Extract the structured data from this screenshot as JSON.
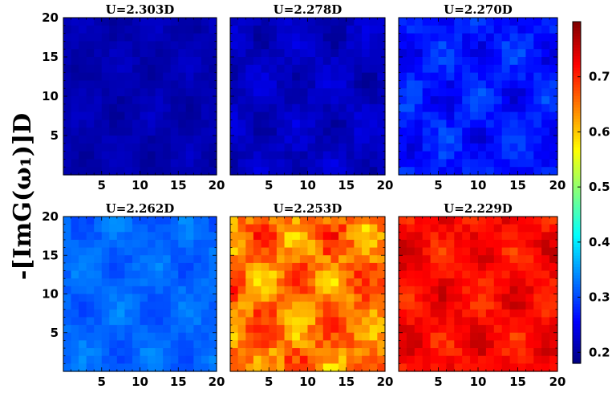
{
  "chart_data": {
    "type": "heatmap",
    "ylabel": "-[ImG(ω₁)]D",
    "grid_range": [
      0,
      20
    ],
    "x_ticks": [
      5,
      10,
      15,
      20
    ],
    "y_ticks": [
      5,
      10,
      15,
      20
    ],
    "colorbar": {
      "range": [
        0.18,
        0.8
      ],
      "ticks": [
        0.2,
        0.3,
        0.4,
        0.5,
        0.6,
        0.7
      ],
      "colormap": "jet"
    },
    "panels": [
      {
        "title": "U=2.303D",
        "mean_value": 0.21,
        "spread": 0.02
      },
      {
        "title": "U=2.278D",
        "mean_value": 0.22,
        "spread": 0.03
      },
      {
        "title": "U=2.270D",
        "mean_value": 0.27,
        "spread": 0.05
      },
      {
        "title": "U=2.262D",
        "mean_value": 0.32,
        "spread": 0.03
      },
      {
        "title": "U=2.253D",
        "mean_value": 0.65,
        "spread": 0.09
      },
      {
        "title": "U=2.229D",
        "mean_value": 0.72,
        "spread": 0.05
      }
    ]
  }
}
